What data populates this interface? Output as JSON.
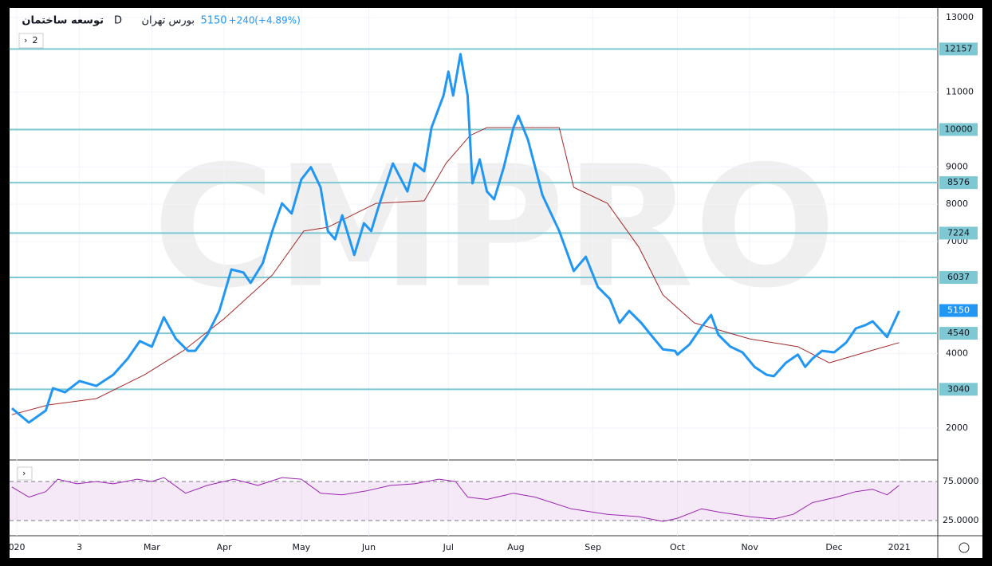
{
  "chart_data": {
    "type": "line",
    "title": "توسعه ساختمان",
    "interval": "D",
    "exchange": "بورس تهران",
    "last": 5150,
    "change": "+240",
    "change_pct": "(+4.89%)",
    "indicator_count": "2",
    "watermark": "CMPRO",
    "xlim": [
      -3,
      382
    ],
    "xticks": [
      {
        "value": 0,
        "label": "020"
      },
      {
        "value": 26,
        "label": "3"
      },
      {
        "value": 56,
        "label": "Mar"
      },
      {
        "value": 86,
        "label": "Apr"
      },
      {
        "value": 118,
        "label": "May"
      },
      {
        "value": 146,
        "label": "Jun"
      },
      {
        "value": 179,
        "label": "Jul"
      },
      {
        "value": 207,
        "label": "Aug"
      },
      {
        "value": 239,
        "label": "Sep"
      },
      {
        "value": 274,
        "label": "Oct"
      },
      {
        "value": 304,
        "label": "Nov"
      },
      {
        "value": 339,
        "label": "Dec"
      },
      {
        "value": 366,
        "label": "2021"
      }
    ],
    "ylim": [
      1146,
      13213
    ],
    "yticks": [
      2000,
      4000,
      7000,
      8000,
      9000,
      11000,
      13000
    ],
    "levels": {
      "color": "#7ec8d3",
      "values": [
        12157,
        10000,
        8576,
        7224,
        6037,
        4540,
        3040
      ]
    },
    "series": [
      {
        "name": "Price",
        "color": "#2196f3",
        "x": [
          -2,
          5,
          12,
          15,
          20,
          26,
          33,
          40,
          46,
          51,
          56,
          61,
          66,
          71,
          74,
          79,
          84,
          89,
          94,
          97,
          102,
          106,
          110,
          114,
          118,
          122,
          126,
          129,
          132,
          135,
          140,
          144,
          147,
          150,
          156,
          162,
          165,
          169,
          172,
          177,
          179,
          181,
          184,
          187,
          189,
          192,
          195,
          198,
          202,
          206,
          208,
          212,
          215,
          218,
          225,
          231,
          236,
          241,
          246,
          250,
          254,
          259,
          263,
          268,
          273,
          274,
          279,
          284,
          288,
          291,
          296,
          301,
          306,
          311,
          314,
          319,
          324,
          327,
          330,
          334,
          339,
          344,
          348,
          352,
          355,
          361,
          366
        ],
        "values": [
          2530,
          2150,
          2470,
          3070,
          2960,
          3260,
          3130,
          3430,
          3860,
          4330,
          4180,
          4970,
          4390,
          4070,
          4070,
          4500,
          5140,
          6250,
          6170,
          5890,
          6420,
          7280,
          8020,
          7750,
          8660,
          8990,
          8450,
          7280,
          7060,
          7700,
          6640,
          7490,
          7280,
          7920,
          9090,
          8340,
          9090,
          8880,
          10050,
          10910,
          11550,
          10910,
          12020,
          10910,
          8560,
          9200,
          8340,
          8130,
          8990,
          10050,
          10370,
          9730,
          8990,
          8240,
          7280,
          6210,
          6590,
          5780,
          5460,
          4820,
          5140,
          4820,
          4500,
          4110,
          4070,
          3970,
          4240,
          4710,
          5030,
          4500,
          4180,
          4030,
          3640,
          3430,
          3390,
          3750,
          3970,
          3640,
          3860,
          4070,
          4030,
          4290,
          4670,
          4760,
          4860,
          4440,
          5140
        ]
      },
      {
        "name": "Baseline",
        "color": "#a52a2a",
        "x": [
          -2,
          13,
          33,
          53,
          69,
          86,
          106,
          119,
          129,
          139,
          149,
          169,
          178,
          188,
          195,
          225,
          231,
          245,
          258,
          268,
          281,
          304,
          324,
          337,
          354,
          366
        ],
        "values": [
          2360,
          2620,
          2790,
          3430,
          4070,
          4930,
          6100,
          7280,
          7380,
          7700,
          8020,
          8090,
          9090,
          9840,
          10050,
          10050,
          8450,
          8020,
          6850,
          5570,
          4820,
          4390,
          4180,
          3750,
          4070,
          4290
        ]
      }
    ],
    "rsi": {
      "color": "#9c27b0",
      "ylim": [
        5.6,
        99.5
      ],
      "yticks": [
        {
          "value": 75,
          "label": "75.0000"
        },
        {
          "value": 25,
          "label": "25.0000"
        }
      ],
      "x": [
        -2,
        5,
        12,
        17,
        25,
        33,
        40,
        50,
        56,
        61,
        70,
        79,
        90,
        100,
        110,
        118,
        126,
        135,
        145,
        155,
        165,
        175,
        182,
        187,
        195,
        206,
        215,
        230,
        245,
        258,
        268,
        274,
        284,
        291,
        304,
        314,
        322,
        330,
        340,
        348,
        355,
        361,
        366
      ],
      "values": [
        68,
        55,
        62,
        78,
        72,
        75,
        72,
        78,
        75,
        80,
        60,
        70,
        78,
        70,
        80,
        78,
        60,
        58,
        63,
        70,
        72,
        78,
        75,
        55,
        52,
        60,
        55,
        40,
        33,
        30,
        24,
        28,
        40,
        36,
        30,
        27,
        33,
        48,
        55,
        62,
        65,
        58,
        70
      ]
    }
  }
}
